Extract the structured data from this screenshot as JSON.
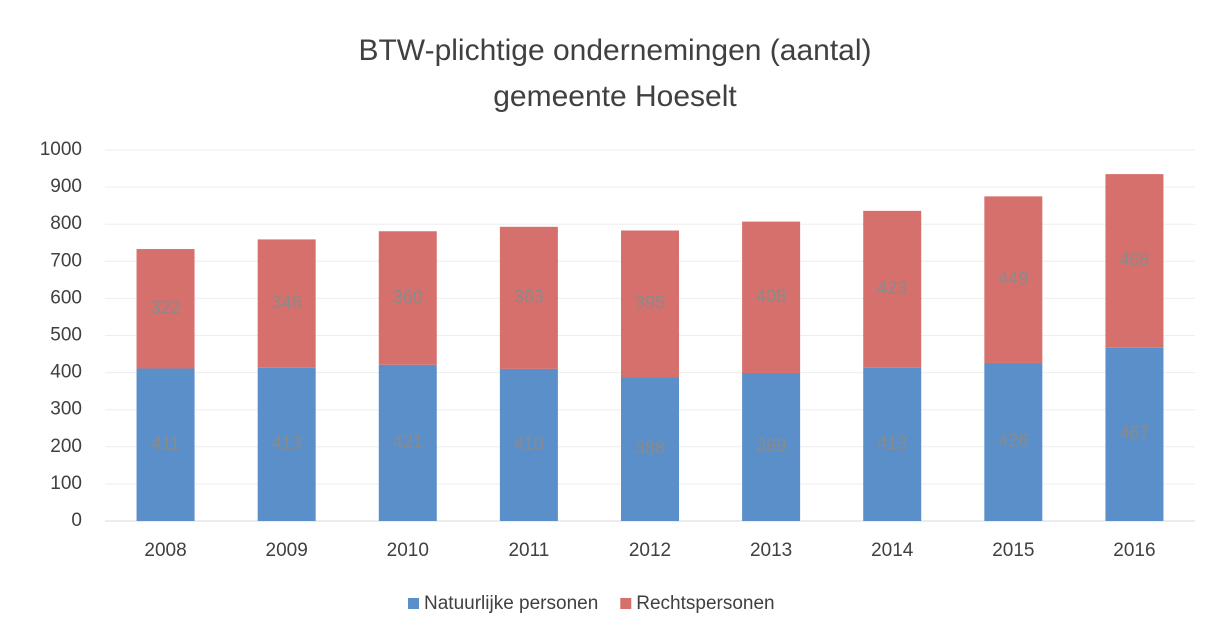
{
  "chart_data": {
    "type": "stacked_bar",
    "title": [
      "BTW-plichtige ondernemingen (aantal)",
      "gemeente Hoeselt"
    ],
    "categories": [
      "2008",
      "2009",
      "2010",
      "2011",
      "2012",
      "2013",
      "2014",
      "2015",
      "2016"
    ],
    "series": [
      {
        "name": "Natuurlijke personen",
        "color": "#5b8fc9",
        "values": [
          411,
          413,
          421,
          410,
          388,
          399,
          413,
          426,
          467
        ]
      },
      {
        "name": "Rechtspersonen",
        "color": "#d6706d",
        "values": [
          322,
          346,
          360,
          383,
          395,
          408,
          423,
          449,
          468
        ]
      }
    ],
    "ylim": [
      0,
      1000
    ],
    "yticks": [
      0,
      100,
      200,
      300,
      400,
      500,
      600,
      700,
      800,
      900,
      1000
    ],
    "grid": true,
    "legend": "bottom"
  }
}
